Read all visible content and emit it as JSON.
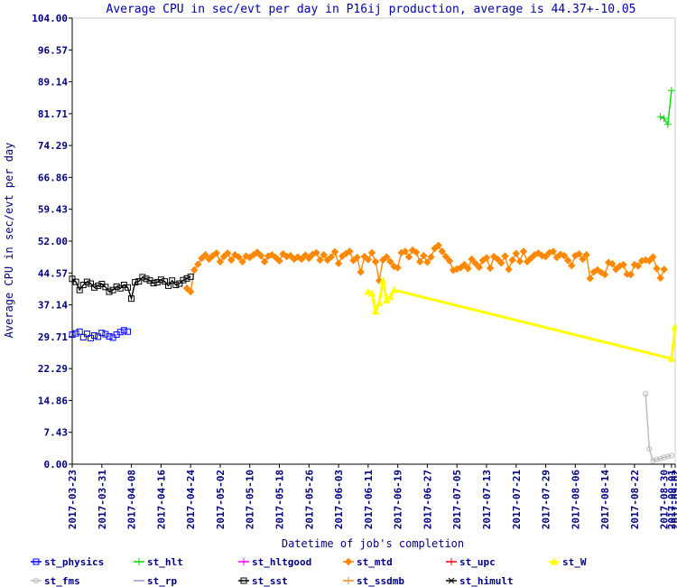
{
  "chart_data": {
    "type": "line",
    "title": "Average CPU in sec/evt per day in P16ij production, average is 44.37+-10.05",
    "xlabel": "Datetime of job's completion",
    "ylabel": "Average CPU in sec/evt per day",
    "ylim": [
      0,
      104
    ],
    "yticks": [
      "0.00",
      "7.43",
      "14.86",
      "22.29",
      "29.71",
      "37.14",
      "44.57",
      "52.00",
      "59.43",
      "66.86",
      "74.29",
      "81.71",
      "89.14",
      "96.57",
      "104.00"
    ],
    "xlim": [
      "2017-03-23",
      "2017-09-02"
    ],
    "xticks": [
      "2017-03-23",
      "2017-03-31",
      "2017-04-08",
      "2017-04-16",
      "2017-04-24",
      "2017-05-02",
      "2017-05-10",
      "2017-05-18",
      "2017-05-26",
      "2017-06-03",
      "2017-06-11",
      "2017-06-19",
      "2017-06-27",
      "2017-07-05",
      "2017-07-13",
      "2017-07-21",
      "2017-07-29",
      "2017-08-06",
      "2017-08-14",
      "2017-08-22",
      "2017-08-30",
      "2017-09-01",
      "2017-09-02"
    ],
    "grid": false,
    "legend_position": "bottom",
    "colors": {
      "title": "#0000aa",
      "axis_text": "#000080",
      "frame": "#cccccc",
      "axis_line": "#000000"
    },
    "series": [
      {
        "name": "st_physics",
        "color": "#0000ff",
        "marker": "square",
        "line": false,
        "x": [
          "2017-03-23",
          "2017-03-24",
          "2017-03-25",
          "2017-03-26",
          "2017-03-27",
          "2017-03-28",
          "2017-03-29",
          "2017-03-30",
          "2017-03-31",
          "2017-04-01",
          "2017-04-02",
          "2017-04-03",
          "2017-04-04",
          "2017-04-05",
          "2017-04-06",
          "2017-04-07"
        ],
        "y": [
          30.2,
          30.5,
          30.9,
          29.6,
          30.4,
          29.4,
          30.0,
          29.7,
          30.6,
          30.3,
          29.8,
          29.5,
          30.2,
          30.8,
          31.2,
          30.9
        ]
      },
      {
        "name": "st_hlt",
        "color": "#00dd00",
        "marker": "plus",
        "line": true,
        "x": [
          "2017-08-29",
          "2017-08-30",
          "2017-08-31",
          "2017-09-01"
        ],
        "y": [
          81.0,
          80.6,
          79.2,
          87.1
        ]
      },
      {
        "name": "st_hltgood",
        "color": "#ff00ff",
        "marker": "cross",
        "line": true,
        "x": [],
        "y": []
      },
      {
        "name": "st_mtd",
        "color": "#ff8800",
        "marker": "diamond",
        "line": true,
        "x": [
          "2017-04-23",
          "2017-04-24",
          "2017-04-25",
          "2017-04-26",
          "2017-04-27",
          "2017-04-28",
          "2017-04-29",
          "2017-04-30",
          "2017-05-01",
          "2017-05-02",
          "2017-05-03",
          "2017-05-04",
          "2017-05-05",
          "2017-05-06",
          "2017-05-07",
          "2017-05-08",
          "2017-05-09",
          "2017-05-10",
          "2017-05-11",
          "2017-05-12",
          "2017-05-13",
          "2017-05-14",
          "2017-05-15",
          "2017-05-16",
          "2017-05-17",
          "2017-05-18",
          "2017-05-19",
          "2017-05-20",
          "2017-05-21",
          "2017-05-22",
          "2017-05-23",
          "2017-05-24",
          "2017-05-25",
          "2017-05-26",
          "2017-05-27",
          "2017-05-28",
          "2017-05-29",
          "2017-05-30",
          "2017-05-31",
          "2017-06-01",
          "2017-06-02",
          "2017-06-03",
          "2017-06-04",
          "2017-06-05",
          "2017-06-06",
          "2017-06-07",
          "2017-06-08",
          "2017-06-09",
          "2017-06-10",
          "2017-06-11",
          "2017-06-12",
          "2017-06-13",
          "2017-06-14",
          "2017-06-15",
          "2017-06-16",
          "2017-06-17",
          "2017-06-18",
          "2017-06-19",
          "2017-06-20",
          "2017-06-21",
          "2017-06-22",
          "2017-06-23",
          "2017-06-24",
          "2017-06-25",
          "2017-06-26",
          "2017-06-27",
          "2017-06-28",
          "2017-06-29",
          "2017-06-30",
          "2017-07-01",
          "2017-07-02",
          "2017-07-03",
          "2017-07-04",
          "2017-07-05",
          "2017-07-06",
          "2017-07-07",
          "2017-07-08",
          "2017-07-09",
          "2017-07-10",
          "2017-07-11",
          "2017-07-12",
          "2017-07-13",
          "2017-07-14",
          "2017-07-15",
          "2017-07-16",
          "2017-07-17",
          "2017-07-18",
          "2017-07-19",
          "2017-07-20",
          "2017-07-21",
          "2017-07-22",
          "2017-07-23",
          "2017-07-24",
          "2017-07-25",
          "2017-07-26",
          "2017-07-27",
          "2017-07-28",
          "2017-07-29",
          "2017-07-30",
          "2017-07-31",
          "2017-08-01",
          "2017-08-02",
          "2017-08-03",
          "2017-08-04",
          "2017-08-05",
          "2017-08-06",
          "2017-08-07",
          "2017-08-08",
          "2017-08-09",
          "2017-08-10",
          "2017-08-11",
          "2017-08-12",
          "2017-08-13",
          "2017-08-14",
          "2017-08-15",
          "2017-08-16",
          "2017-08-17",
          "2017-08-18",
          "2017-08-19",
          "2017-08-20",
          "2017-08-21",
          "2017-08-22",
          "2017-08-23",
          "2017-08-24",
          "2017-08-25",
          "2017-08-26",
          "2017-08-27",
          "2017-08-28",
          "2017-08-29",
          "2017-08-30"
        ],
        "y": [
          41.0,
          40.2,
          45.3,
          46.6,
          48.0,
          48.8,
          47.8,
          48.6,
          49.2,
          47.2,
          48.4,
          49.2,
          47.6,
          48.8,
          48.3,
          47.2,
          48.5,
          48.2,
          48.8,
          49.4,
          48.6,
          47.2,
          48.5,
          48.8,
          48.2,
          47.4,
          49.0,
          48.4,
          48.6,
          47.8,
          48.3,
          47.8,
          48.7,
          48.0,
          48.9,
          49.3,
          47.6,
          48.8,
          47.6,
          48.3,
          49.5,
          46.8,
          48.5,
          49.1,
          49.6,
          47.5,
          48.2,
          44.8,
          48.4,
          47.7,
          49.3,
          47.2,
          42.8,
          47.6,
          48.3,
          47.2,
          46.1,
          45.8,
          49.3,
          49.6,
          48.3,
          49.9,
          49.4,
          47.2,
          48.6,
          47.1,
          48.3,
          50.3,
          51.0,
          49.6,
          48.4,
          47.4,
          45.2,
          45.5,
          45.8,
          46.5,
          45.6,
          47.8,
          46.8,
          45.9,
          47.5,
          48.1,
          45.7,
          48.4,
          47.8,
          46.9,
          48.5,
          45.4,
          47.6,
          49.1,
          47.3,
          49.6,
          47.2,
          48.0,
          48.8,
          49.2,
          48.6,
          48.4,
          49.3,
          49.6,
          48.2,
          48.9,
          48.6,
          47.5,
          46.3,
          48.6,
          49.0,
          47.8,
          48.8,
          43.3,
          44.8,
          45.3,
          44.7,
          44.2,
          47.0,
          46.7,
          45.4,
          46.2,
          46.5,
          44.3,
          44.2,
          46.5,
          46.2,
          47.4,
          47.6,
          47.4,
          48.3,
          45.6,
          43.4,
          45.4
        ]
      },
      {
        "name": "st_upc",
        "color": "#ff0000",
        "marker": "cross",
        "line": true,
        "x": [],
        "y": []
      },
      {
        "name": "st_W",
        "color": "#ffff00",
        "marker": "triangle",
        "line": true,
        "x": [
          "2017-06-11",
          "2017-06-12",
          "2017-06-13",
          "2017-06-14",
          "2017-06-15",
          "2017-06-16",
          "2017-06-17",
          "2017-06-18",
          "2017-09-01",
          "2017-09-02"
        ],
        "y": [
          40.2,
          39.8,
          35.6,
          37.6,
          42.8,
          38.2,
          39.0,
          40.6,
          24.6,
          32.0
        ]
      },
      {
        "name": "st_fms",
        "color": "#bbbbbb",
        "marker": "circle",
        "line": true,
        "x": [
          "2017-08-25",
          "2017-08-26",
          "2017-08-27",
          "2017-08-28",
          "2017-08-29",
          "2017-08-30",
          "2017-08-31",
          "2017-09-01"
        ],
        "y": [
          16.4,
          3.6,
          0.8,
          1.1,
          1.3,
          1.6,
          1.8,
          2.0
        ]
      },
      {
        "name": "st_rp",
        "color": "#9999cc",
        "marker": "none",
        "line": true,
        "x": [],
        "y": []
      },
      {
        "name": "st_sst",
        "color": "#000000",
        "marker": "square",
        "line": true,
        "x": [
          "2017-03-23",
          "2017-03-24",
          "2017-03-25",
          "2017-03-26",
          "2017-03-27",
          "2017-03-28",
          "2017-03-29",
          "2017-03-30",
          "2017-03-31",
          "2017-04-01",
          "2017-04-02",
          "2017-04-03",
          "2017-04-04",
          "2017-04-05",
          "2017-04-06",
          "2017-04-07",
          "2017-04-08",
          "2017-04-09",
          "2017-04-10",
          "2017-04-11",
          "2017-04-12",
          "2017-04-13",
          "2017-04-14",
          "2017-04-15",
          "2017-04-16",
          "2017-04-17",
          "2017-04-18",
          "2017-04-19",
          "2017-04-20",
          "2017-04-21",
          "2017-04-22",
          "2017-04-23",
          "2017-04-24"
        ],
        "y": [
          43.2,
          42.5,
          40.6,
          41.8,
          42.5,
          42.1,
          41.2,
          41.6,
          42.0,
          41.3,
          40.2,
          40.6,
          41.4,
          41.0,
          41.8,
          41.2,
          38.6,
          42.4,
          42.6,
          43.6,
          43.2,
          42.8,
          42.2,
          42.4,
          43.0,
          42.6,
          41.6,
          42.8,
          41.8,
          42.1,
          42.9,
          43.3,
          43.7
        ]
      },
      {
        "name": "st_ssdmb",
        "color": "#ee8822",
        "marker": "cross",
        "line": true,
        "x": [],
        "y": []
      },
      {
        "name": "st_himult",
        "color": "#000000",
        "marker": "x",
        "line": true,
        "x": [],
        "y": []
      }
    ]
  }
}
